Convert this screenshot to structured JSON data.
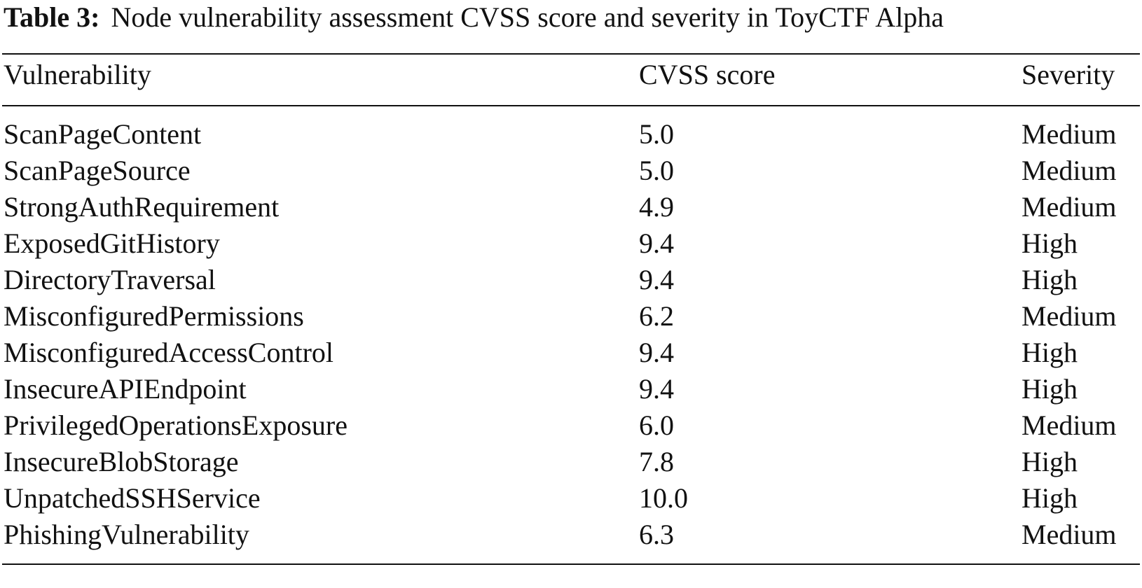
{
  "caption": {
    "label": "Table 3:",
    "text": "Node vulnerability assessment CVSS score and severity in ToyCTF Alpha"
  },
  "table": {
    "headers": [
      "Vulnerability",
      "CVSS score",
      "Severity"
    ],
    "rows": [
      [
        "ScanPageContent",
        "5.0",
        "Medium"
      ],
      [
        "ScanPageSource",
        "5.0",
        "Medium"
      ],
      [
        "StrongAuthRequirement",
        "4.9",
        "Medium"
      ],
      [
        "ExposedGitHistory",
        "9.4",
        "High"
      ],
      [
        "DirectoryTraversal",
        "9.4",
        "High"
      ],
      [
        "MisconfiguredPermissions",
        "6.2",
        "Medium"
      ],
      [
        "MisconfiguredAccessControl",
        "9.4",
        "High"
      ],
      [
        "InsecureAPIEndpoint",
        "9.4",
        "High"
      ],
      [
        "PrivilegedOperationsExposure",
        "6.0",
        "Medium"
      ],
      [
        "InsecureBlobStorage",
        "7.8",
        "High"
      ],
      [
        "UnpatchedSSHService",
        "10.0",
        "High"
      ],
      [
        "PhishingVulnerability",
        "6.3",
        "Medium"
      ]
    ]
  }
}
